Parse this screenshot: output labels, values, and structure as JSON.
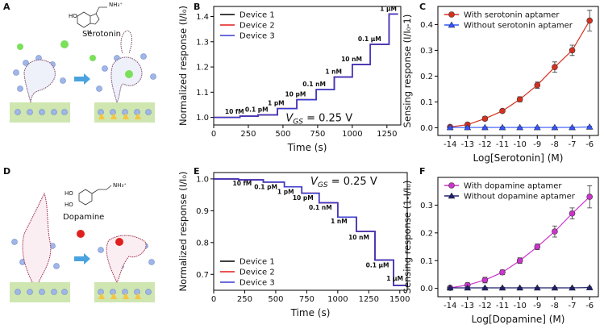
{
  "panel_labels": [
    "A",
    "B",
    "C",
    "D",
    "E",
    "F"
  ],
  "diagrams": [
    {
      "label": "Serotonin",
      "structure_labels": [
        "HO",
        "NH₃⁺",
        "H"
      ]
    },
    {
      "label": "Dopamine",
      "structure_labels": [
        "HO",
        "HO",
        "NH₃⁺"
      ]
    }
  ],
  "chart_data": [
    {
      "type": "line",
      "xlabel": "Time (s)",
      "ylabel": "Normalized response (I/I₀)",
      "xlim": [
        0,
        1350
      ],
      "xticks": [
        0,
        250,
        500,
        750,
        1000,
        1250
      ],
      "ylim": [
        0.97,
        1.44
      ],
      "yticks": [
        {
          "value": 1,
          "label": "1.0"
        },
        1.1,
        1.2,
        1.3,
        1.4
      ],
      "legend": "upper left",
      "x": [
        0,
        190,
        190,
        320,
        320,
        460,
        460,
        600,
        600,
        740,
        740,
        870,
        870,
        1000,
        1000,
        1130,
        1130,
        1265,
        1265,
        1330
      ],
      "series": [
        {
          "name": "Device 1",
          "color": "#000000",
          "values": [
            1,
            1,
            1.005,
            1.005,
            1.01,
            1.01,
            1.035,
            1.035,
            1.07,
            1.07,
            1.11,
            1.11,
            1.16,
            1.16,
            1.21,
            1.21,
            1.29,
            1.29,
            1.41,
            1.41
          ]
        },
        {
          "name": "Device 2",
          "color": "#e41a1c",
          "values": [
            1,
            1,
            1.005,
            1.005,
            1.01,
            1.01,
            1.035,
            1.035,
            1.07,
            1.07,
            1.11,
            1.11,
            1.16,
            1.16,
            1.21,
            1.21,
            1.29,
            1.29,
            1.41,
            1.41
          ]
        },
        {
          "name": "Device 3",
          "color": "#3a3ad0",
          "values": [
            1,
            1,
            1.005,
            1.005,
            1.01,
            1.01,
            1.035,
            1.035,
            1.07,
            1.07,
            1.11,
            1.11,
            1.16,
            1.16,
            1.21,
            1.21,
            1.29,
            1.29,
            1.41,
            1.41
          ]
        }
      ],
      "annotations": [
        {
          "text": "10 fM",
          "x": 150,
          "y": 1.015
        },
        {
          "text": "0.1 pM",
          "x": 310,
          "y": 1.022
        },
        {
          "text": "1 pM",
          "x": 450,
          "y": 1.048
        },
        {
          "text": "10 pM",
          "x": 590,
          "y": 1.083
        },
        {
          "text": "0.1 nM",
          "x": 725,
          "y": 1.123
        },
        {
          "text": "1 nM",
          "x": 865,
          "y": 1.173
        },
        {
          "text": "10 nM",
          "x": 995,
          "y": 1.223
        },
        {
          "text": "0.1 μM",
          "x": 1125,
          "y": 1.303
        },
        {
          "text": "1 μM",
          "x": 1260,
          "y": 1.423
        }
      ],
      "vgs": {
        "symbol": "V",
        "subscript": "GS",
        "text": " = 0.25 V",
        "x": 520,
        "y": 0.985
      }
    },
    {
      "type": "line",
      "xlabel": "Log[Serotonin] (M)",
      "ylabel": "Sensing response (I/I₀-1)",
      "xlim": [
        -14.7,
        -5.5
      ],
      "xticks": [
        -14,
        -13,
        -12,
        -11,
        -10,
        -9,
        -8,
        -7,
        -6
      ],
      "ylim": [
        -0.03,
        0.47
      ],
      "yticks": [
        {
          "value": 0,
          "label": "0.0"
        },
        0.1,
        0.2,
        0.3,
        0.4
      ],
      "legend": "upper left",
      "x": [
        -14,
        -13,
        -12,
        -11,
        -10,
        -9,
        -8,
        -7,
        -6
      ],
      "series": [
        {
          "name": "With serotonin aptamer",
          "color": "#d7301f",
          "marker": "circle",
          "values": [
            0.003,
            0.012,
            0.035,
            0.065,
            0.11,
            0.165,
            0.235,
            0.3,
            0.415
          ],
          "errors": [
            0.005,
            0.008,
            0.008,
            0.006,
            0.01,
            0.012,
            0.02,
            0.02,
            0.04
          ]
        },
        {
          "name": "Without serotonin aptamer",
          "color": "#3355ff",
          "marker": "triangle",
          "values": [
            0.001,
            0.001,
            0.001,
            0.001,
            0.001,
            0.001,
            0.001,
            0.001,
            0.003
          ],
          "errors": [
            0.002,
            0.002,
            0.002,
            0.002,
            0.002,
            0.002,
            0.002,
            0.002,
            0.003
          ]
        }
      ]
    },
    {
      "type": "line",
      "xlabel": "Time (s)",
      "ylabel": "Normalized response (I/I₀)",
      "xlim": [
        0,
        1560
      ],
      "xticks": [
        0,
        250,
        500,
        750,
        1000,
        1250,
        1500
      ],
      "ylim": [
        0.65,
        1.02
      ],
      "yticks": [
        0.7,
        0.8,
        0.9,
        {
          "value": 1,
          "label": "1.0"
        }
      ],
      "legend": "lower left",
      "x": [
        0,
        200,
        200,
        400,
        400,
        570,
        570,
        710,
        710,
        850,
        850,
        1000,
        1000,
        1150,
        1150,
        1300,
        1300,
        1450,
        1450,
        1560
      ],
      "series": [
        {
          "name": "Device 1",
          "color": "#000000",
          "values": [
            1,
            1,
            0.997,
            0.997,
            0.99,
            0.99,
            0.975,
            0.975,
            0.955,
            0.955,
            0.925,
            0.925,
            0.88,
            0.88,
            0.835,
            0.835,
            0.745,
            0.745,
            0.665,
            0.665
          ]
        },
        {
          "name": "Device 2",
          "color": "#e41a1c",
          "values": [
            1,
            1,
            0.997,
            0.997,
            0.99,
            0.99,
            0.975,
            0.975,
            0.955,
            0.955,
            0.925,
            0.925,
            0.88,
            0.88,
            0.835,
            0.835,
            0.745,
            0.745,
            0.665,
            0.665
          ]
        },
        {
          "name": "Device 3",
          "color": "#3a3ad0",
          "values": [
            1,
            1,
            0.997,
            0.997,
            0.99,
            0.99,
            0.975,
            0.975,
            0.955,
            0.955,
            0.925,
            0.925,
            0.88,
            0.88,
            0.835,
            0.835,
            0.745,
            0.745,
            0.665,
            0.665
          ]
        }
      ],
      "annotations": [
        {
          "text": "10 fM",
          "x": 230,
          "y": 0.98
        },
        {
          "text": "0.1 pM",
          "x": 420,
          "y": 0.968
        },
        {
          "text": "1 pM",
          "x": 580,
          "y": 0.953
        },
        {
          "text": "10 pM",
          "x": 720,
          "y": 0.934
        },
        {
          "text": "0.1 nM",
          "x": 860,
          "y": 0.903
        },
        {
          "text": "1 nM",
          "x": 1010,
          "y": 0.86
        },
        {
          "text": "10 nM",
          "x": 1170,
          "y": 0.81
        },
        {
          "text": "0.1 μM",
          "x": 1320,
          "y": 0.722
        },
        {
          "text": "1 μM",
          "x": 1460,
          "y": 0.68
        }
      ],
      "vgs": {
        "symbol": "V",
        "subscript": "GS",
        "text": " = 0.25 V",
        "x": 780,
        "y": 0.982
      }
    },
    {
      "type": "line",
      "xlabel": "Log[Dopamine] (M)",
      "ylabel": "Sensing response (1-I/I₀)",
      "xlim": [
        -14.7,
        -5.5
      ],
      "xticks": [
        -14,
        -13,
        -12,
        -11,
        -10,
        -9,
        -8,
        -7,
        -6
      ],
      "ylim": [
        -0.03,
        0.4
      ],
      "yticks": [
        {
          "value": 0,
          "label": "0.0"
        },
        0.1,
        0.2,
        0.3
      ],
      "legend": "upper left",
      "x": [
        -14,
        -13,
        -12,
        -11,
        -10,
        -9,
        -8,
        -7,
        -6
      ],
      "series": [
        {
          "name": "With dopamine aptamer",
          "color": "#cc33cc",
          "marker": "circle",
          "values": [
            0.002,
            0.012,
            0.03,
            0.058,
            0.1,
            0.15,
            0.205,
            0.27,
            0.33
          ],
          "errors": [
            0.003,
            0.008,
            0.01,
            0.008,
            0.01,
            0.01,
            0.02,
            0.02,
            0.04
          ]
        },
        {
          "name": "Without dopamine aptamer",
          "color": "#1f1f6e",
          "marker": "triangle",
          "values": [
            0.002,
            0.002,
            0.002,
            0.002,
            0.002,
            0.002,
            0.002,
            0.002,
            0.003
          ],
          "errors": [
            0.002,
            0.002,
            0.002,
            0.002,
            0.002,
            0.002,
            0.002,
            0.002,
            0.002
          ]
        }
      ]
    }
  ]
}
